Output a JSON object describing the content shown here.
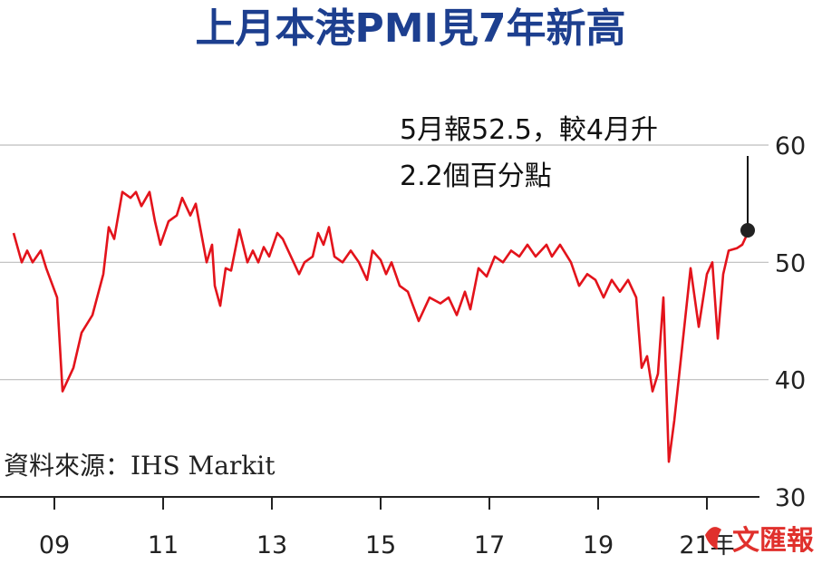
{
  "chart_data": {
    "type": "line",
    "title": "上月本港PMI見7年新高",
    "xlabel": "",
    "ylabel": "",
    "ylim": [
      30,
      62
    ],
    "yticks": [
      30,
      40,
      50,
      60
    ],
    "xlim": [
      2008.0,
      2022.0
    ],
    "xticks": [
      {
        "value": 2009,
        "label": "09"
      },
      {
        "value": 2011,
        "label": "11"
      },
      {
        "value": 2013,
        "label": "13"
      },
      {
        "value": 2015,
        "label": "15"
      },
      {
        "value": 2017,
        "label": "17"
      },
      {
        "value": 2019,
        "label": "19"
      },
      {
        "value": 2021,
        "label": "21年"
      }
    ],
    "grid": "horizontal",
    "line_color": "#e3131b",
    "series": [
      {
        "values": [
          [
            2008.25,
            52.5
          ],
          [
            2008.4,
            50.0
          ],
          [
            2008.5,
            51.0
          ],
          [
            2008.6,
            50.0
          ],
          [
            2008.75,
            51.0
          ],
          [
            2008.85,
            49.5
          ],
          [
            2009.05,
            47.0
          ],
          [
            2009.15,
            39.0
          ],
          [
            2009.35,
            41.0
          ],
          [
            2009.5,
            44.0
          ],
          [
            2009.7,
            45.5
          ],
          [
            2009.9,
            49.0
          ],
          [
            2010.0,
            53.0
          ],
          [
            2010.1,
            52.0
          ],
          [
            2010.25,
            56.0
          ],
          [
            2010.4,
            55.5
          ],
          [
            2010.5,
            56.0
          ],
          [
            2010.6,
            54.8
          ],
          [
            2010.75,
            56.0
          ],
          [
            2010.85,
            53.5
          ],
          [
            2010.95,
            51.5
          ],
          [
            2011.1,
            53.5
          ],
          [
            2011.25,
            54.0
          ],
          [
            2011.35,
            55.5
          ],
          [
            2011.5,
            54.0
          ],
          [
            2011.6,
            55.0
          ],
          [
            2011.7,
            52.5
          ],
          [
            2011.8,
            50.0
          ],
          [
            2011.9,
            51.5
          ],
          [
            2011.95,
            48.0
          ],
          [
            2012.05,
            46.3
          ],
          [
            2012.15,
            49.5
          ],
          [
            2012.25,
            49.3
          ],
          [
            2012.4,
            52.8
          ],
          [
            2012.55,
            50.0
          ],
          [
            2012.65,
            51.0
          ],
          [
            2012.75,
            50.0
          ],
          [
            2012.85,
            51.3
          ],
          [
            2012.95,
            50.5
          ],
          [
            2013.1,
            52.5
          ],
          [
            2013.2,
            52.0
          ],
          [
            2013.3,
            51.0
          ],
          [
            2013.4,
            50.0
          ],
          [
            2013.5,
            49.0
          ],
          [
            2013.6,
            50.0
          ],
          [
            2013.75,
            50.5
          ],
          [
            2013.85,
            52.5
          ],
          [
            2013.95,
            51.5
          ],
          [
            2014.05,
            53.0
          ],
          [
            2014.15,
            50.5
          ],
          [
            2014.3,
            50.0
          ],
          [
            2014.45,
            51.0
          ],
          [
            2014.6,
            50.0
          ],
          [
            2014.75,
            48.5
          ],
          [
            2014.85,
            51.0
          ],
          [
            2015.0,
            50.2
          ],
          [
            2015.1,
            49.0
          ],
          [
            2015.2,
            50.0
          ],
          [
            2015.35,
            48.0
          ],
          [
            2015.5,
            47.5
          ],
          [
            2015.7,
            45.0
          ],
          [
            2015.9,
            47.0
          ],
          [
            2016.1,
            46.5
          ],
          [
            2016.25,
            47.0
          ],
          [
            2016.4,
            45.5
          ],
          [
            2016.55,
            47.5
          ],
          [
            2016.65,
            46.0
          ],
          [
            2016.8,
            49.5
          ],
          [
            2016.95,
            48.8
          ],
          [
            2017.1,
            50.5
          ],
          [
            2017.25,
            50.0
          ],
          [
            2017.4,
            51.0
          ],
          [
            2017.55,
            50.5
          ],
          [
            2017.7,
            51.5
          ],
          [
            2017.85,
            50.5
          ],
          [
            2017.95,
            51.0
          ],
          [
            2018.05,
            51.5
          ],
          [
            2018.15,
            50.5
          ],
          [
            2018.3,
            51.5
          ],
          [
            2018.5,
            50.0
          ],
          [
            2018.65,
            48.0
          ],
          [
            2018.8,
            49.0
          ],
          [
            2018.95,
            48.5
          ],
          [
            2019.1,
            47.0
          ],
          [
            2019.25,
            48.5
          ],
          [
            2019.4,
            47.5
          ],
          [
            2019.55,
            48.5
          ],
          [
            2019.7,
            47.0
          ],
          [
            2019.8,
            41.0
          ],
          [
            2019.9,
            42.0
          ],
          [
            2020.0,
            39.0
          ],
          [
            2020.1,
            40.5
          ],
          [
            2020.2,
            47.0
          ],
          [
            2020.3,
            33.0
          ],
          [
            2020.4,
            36.5
          ],
          [
            2020.55,
            43.0
          ],
          [
            2020.7,
            49.5
          ],
          [
            2020.85,
            44.5
          ],
          [
            2021.0,
            49.0
          ],
          [
            2021.1,
            50.0
          ],
          [
            2021.2,
            43.5
          ],
          [
            2021.3,
            49.0
          ],
          [
            2021.4,
            51.0
          ],
          [
            2021.55,
            51.2
          ],
          [
            2021.65,
            51.5
          ],
          [
            2021.75,
            52.5
          ]
        ]
      }
    ],
    "highlight_point": [
      2021.75,
      52.5
    ],
    "annotation": [
      "5月報52.5，較4月升",
      "2.2個百分點"
    ],
    "source": "資料來源：IHS Markit"
  },
  "watermark": "文匯報"
}
